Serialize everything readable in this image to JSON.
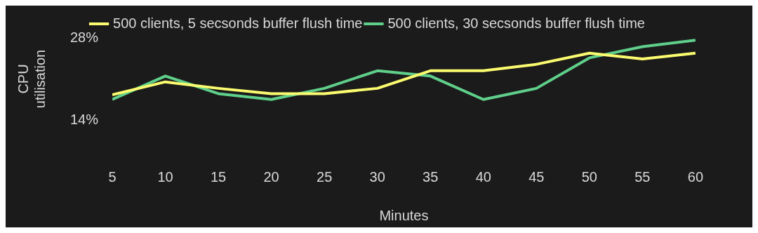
{
  "chart_data": {
    "type": "line",
    "xlabel": "Minutes",
    "ylabel": "CPU utilisation",
    "x": [
      5,
      10,
      15,
      20,
      25,
      30,
      35,
      40,
      45,
      50,
      55,
      60
    ],
    "xlim": [
      5,
      60
    ],
    "xticks": [
      5,
      10,
      15,
      20,
      25,
      30,
      35,
      40,
      45,
      50,
      55,
      60
    ],
    "ylim": [
      14,
      28
    ],
    "yticks": [
      {
        "value": 14,
        "label": "14%"
      },
      {
        "value": 28,
        "label": "28%"
      }
    ],
    "grid": false,
    "legend": "top",
    "marker": "none",
    "line_style": "solid",
    "series": [
      {
        "name": "500 clients, 5 secsonds buffer flush time",
        "color": "#fbfb6f",
        "values": [
          18.3,
          20.5,
          19.4,
          18.5,
          18.5,
          19.4,
          22.4,
          22.4,
          23.5,
          25.4,
          24.4,
          25.4
        ]
      },
      {
        "name": "500 clients, 30 secsonds buffer flush time",
        "color": "#5fcf8a",
        "values": [
          17.5,
          21.5,
          18.5,
          17.5,
          19.4,
          22.4,
          21.5,
          17.5,
          19.4,
          24.6,
          26.5,
          27.6
        ]
      }
    ]
  }
}
